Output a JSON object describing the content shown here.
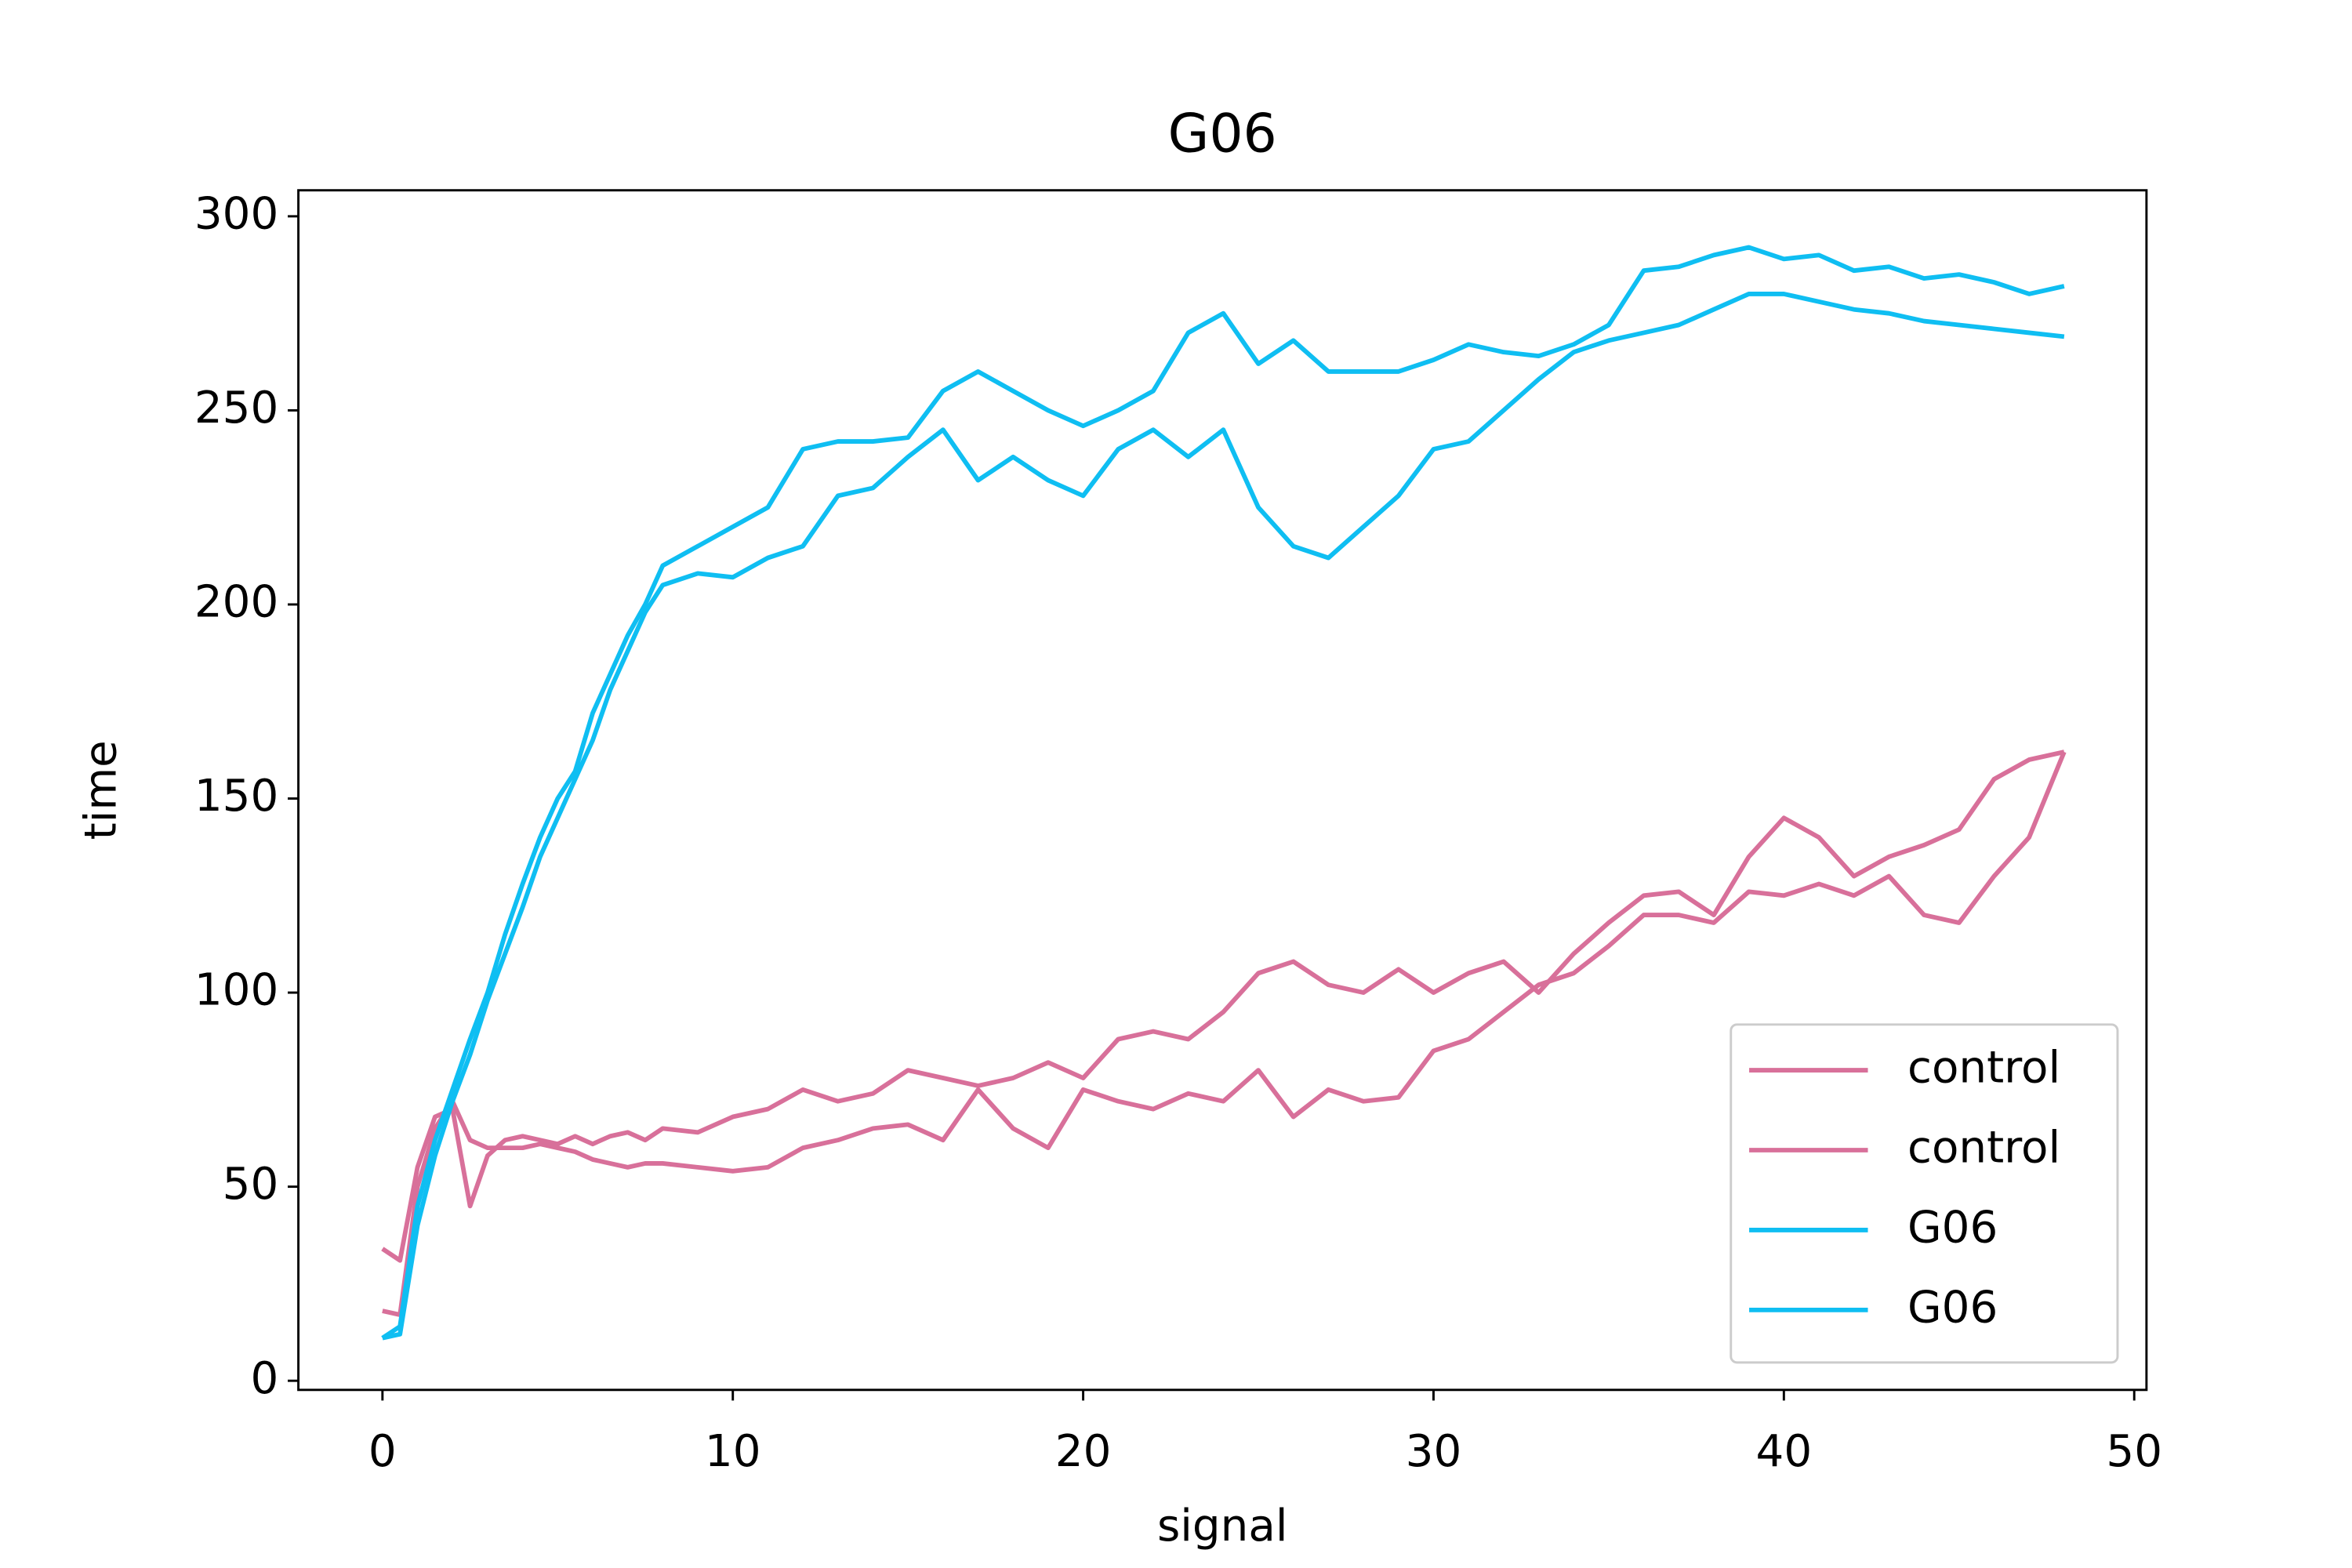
{
  "chart_data": {
    "type": "line",
    "title": "G06",
    "xlabel": "signal",
    "ylabel": "time",
    "x": [
      0,
      0.5,
      1,
      1.5,
      2,
      2.5,
      3,
      3.5,
      4,
      4.5,
      5,
      5.5,
      6,
      6.5,
      7,
      7.5,
      8,
      9,
      10,
      11,
      12,
      13,
      14,
      15,
      16,
      17,
      18,
      19,
      20,
      21,
      22,
      23,
      24,
      25,
      26,
      27,
      28,
      29,
      30,
      31,
      32,
      33,
      34,
      35,
      36,
      37,
      38,
      39,
      40,
      41,
      42,
      43,
      44,
      45,
      46,
      47,
      48
    ],
    "series": [
      {
        "name": "control",
        "color": "#d8709a",
        "values": [
          34,
          31,
          55,
          68,
          70,
          45,
          58,
          62,
          63,
          62,
          61,
          63,
          61,
          63,
          64,
          62,
          65,
          64,
          68,
          70,
          75,
          72,
          74,
          80,
          78,
          76,
          78,
          82,
          78,
          88,
          90,
          88,
          95,
          105,
          108,
          102,
          100,
          106,
          100,
          105,
          108,
          100,
          110,
          118,
          125,
          126,
          120,
          135,
          145,
          140,
          130,
          135,
          138,
          142,
          155,
          160,
          162
        ]
      },
      {
        "name": "control",
        "color": "#d8709a",
        "values": [
          18,
          17,
          50,
          65,
          72,
          62,
          60,
          60,
          60,
          61,
          60,
          59,
          57,
          56,
          55,
          56,
          56,
          55,
          54,
          55,
          60,
          62,
          65,
          66,
          62,
          75,
          65,
          60,
          75,
          72,
          70,
          74,
          72,
          80,
          68,
          75,
          72,
          73,
          85,
          88,
          95,
          102,
          105,
          112,
          120,
          120,
          118,
          126,
          125,
          128,
          125,
          130,
          120,
          118,
          130,
          140,
          162
        ]
      },
      {
        "name": "G06",
        "color": "#0fbef2",
        "values": [
          11,
          14,
          45,
          62,
          75,
          88,
          100,
          115,
          128,
          140,
          150,
          157,
          172,
          182,
          192,
          200,
          210,
          215,
          220,
          225,
          240,
          242,
          242,
          243,
          255,
          260,
          255,
          250,
          246,
          250,
          255,
          270,
          275,
          262,
          268,
          260,
          260,
          260,
          263,
          267,
          265,
          264,
          267,
          272,
          286,
          287,
          290,
          292,
          289,
          290,
          286,
          287,
          284,
          285,
          283,
          280,
          282
        ]
      },
      {
        "name": "G06",
        "color": "#0fbef2",
        "values": [
          11,
          12,
          40,
          58,
          72,
          84,
          98,
          110,
          122,
          135,
          145,
          155,
          165,
          178,
          188,
          198,
          205,
          208,
          207,
          212,
          215,
          228,
          230,
          238,
          245,
          232,
          238,
          232,
          228,
          240,
          245,
          238,
          245,
          225,
          215,
          212,
          220,
          228,
          240,
          242,
          250,
          258,
          265,
          268,
          270,
          272,
          276,
          280,
          280,
          278,
          276,
          275,
          273,
          272,
          271,
          270,
          269
        ]
      }
    ],
    "xlim": [
      -2.4,
      50.35
    ],
    "xticks": [
      0,
      10,
      20,
      30,
      40,
      50
    ],
    "ylim": [
      -2.35,
      306.7
    ],
    "yticks": [
      0,
      50,
      100,
      150,
      200,
      250,
      300
    ],
    "legend": "lower right",
    "grid": false
  }
}
